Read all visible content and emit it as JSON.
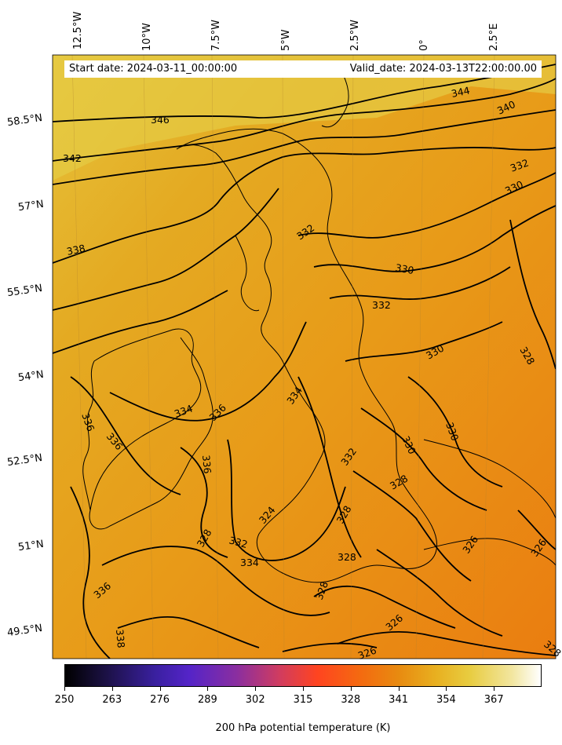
{
  "map": {
    "start_date": "Start date: 2024-03-11_00:00:00",
    "valid_date": "Valid_date: 2024-03-13T22:00:00.00",
    "lon_labels": [
      "12.5°W",
      "10°W",
      "7.5°W",
      "5°W",
      "2.5°W",
      "0°",
      "2.5°E"
    ],
    "lat_labels": [
      "58.5°N",
      "57°N",
      "55.5°N",
      "54°N",
      "52.5°N",
      "51°N",
      "49.5°N"
    ],
    "contour_labels": [
      "346",
      "344",
      "340",
      "342",
      "332",
      "330",
      "338",
      "332",
      "330",
      "332",
      "328",
      "330",
      "334",
      "336",
      "334",
      "336",
      "336",
      "336",
      "330",
      "330",
      "328",
      "328",
      "332",
      "324",
      "328",
      "326",
      "332",
      "334",
      "336",
      "328",
      "328",
      "326",
      "338",
      "326",
      "326",
      "328"
    ],
    "colors": {
      "fill_dark": "#e8820f",
      "fill_mid": "#e8a020",
      "fill_light": "#e8c840",
      "contour": "#000000"
    }
  },
  "colorbar": {
    "ticks": [
      "250",
      "263",
      "276",
      "289",
      "302",
      "315",
      "328",
      "341",
      "354",
      "367"
    ],
    "label": "200 hPa potential temperature (K)"
  }
}
